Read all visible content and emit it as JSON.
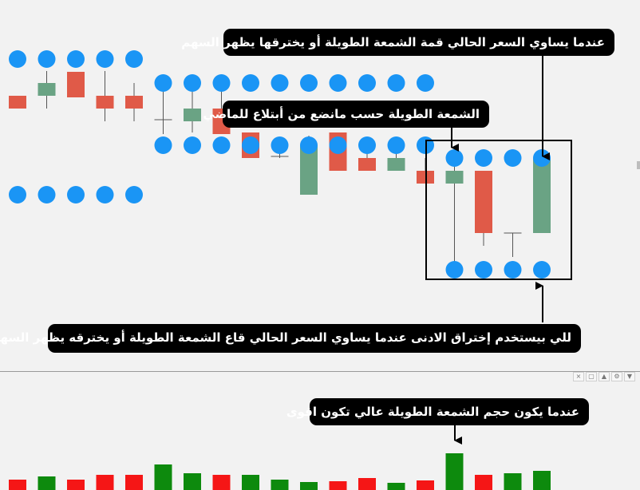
{
  "colors": {
    "background": "#f2f2f2",
    "bull": "#6aa384",
    "bear": "#e05a48",
    "dot": "#1a95f5",
    "vol_up": "#0d8a0d",
    "vol_down": "#f51616",
    "callout_bg": "#000000",
    "callout_text": "#ffffff"
  },
  "annotations": {
    "top_arrow_label": "عندما يساوي السعر الحالي قمة الشمعة الطويلة أو يخترقها يظهر السهم",
    "long_candle_label": "الشمعة الطويلة حسب مانضع من أبتلاع للماضي",
    "bottom_arrow_label": "للي بيستخدم إختراق الادنى عندما يساوي السعر الحالي قاع الشمعة الطويلة أو يخترقه يظهر السهم",
    "volume_label": "عندما يكون حجم الشمعة الطويلة عالي تكون اقوى"
  },
  "toolbar": {
    "close_icon": "×",
    "restore_icon": "▢",
    "move_up_icon": "▲",
    "properties_icon": "⚙",
    "move_down_icon": "▼"
  }
}
